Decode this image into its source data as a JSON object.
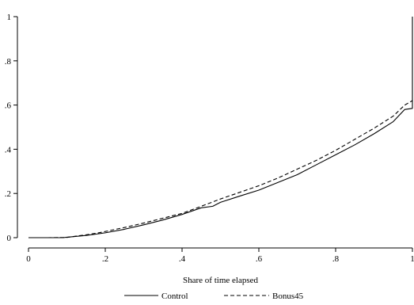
{
  "chart_data": {
    "type": "line",
    "title": "",
    "xlabel": "Share of time elapsed",
    "ylabel": "",
    "xlim": [
      0,
      1
    ],
    "ylim": [
      0,
      1
    ],
    "x_ticks": [
      0,
      0.2,
      0.4,
      0.6,
      0.8,
      1
    ],
    "x_tick_labels": [
      "0",
      ".2",
      ".4",
      ".6",
      ".8",
      "1"
    ],
    "y_ticks": [
      0,
      0.2,
      0.4,
      0.6,
      0.8,
      1
    ],
    "y_tick_labels": [
      "0",
      ".2",
      ".4",
      ".6",
      ".8",
      "1"
    ],
    "grid": false,
    "legend_position": "bottom",
    "series": [
      {
        "name": "Control",
        "style": "solid",
        "color": "#000000",
        "points": [
          [
            0.0,
            0.0
          ],
          [
            0.05,
            0.0
          ],
          [
            0.09,
            0.0
          ],
          [
            0.1,
            0.002
          ],
          [
            0.12,
            0.005
          ],
          [
            0.15,
            0.01
          ],
          [
            0.18,
            0.017
          ],
          [
            0.2,
            0.022
          ],
          [
            0.25,
            0.038
          ],
          [
            0.3,
            0.058
          ],
          [
            0.35,
            0.08
          ],
          [
            0.4,
            0.105
          ],
          [
            0.45,
            0.135
          ],
          [
            0.48,
            0.142
          ],
          [
            0.5,
            0.16
          ],
          [
            0.55,
            0.188
          ],
          [
            0.6,
            0.215
          ],
          [
            0.65,
            0.25
          ],
          [
            0.7,
            0.285
          ],
          [
            0.75,
            0.33
          ],
          [
            0.8,
            0.375
          ],
          [
            0.85,
            0.42
          ],
          [
            0.9,
            0.47
          ],
          [
            0.95,
            0.525
          ],
          [
            0.98,
            0.58
          ],
          [
            1.0,
            0.585
          ],
          [
            1.0,
            1.0
          ]
        ]
      },
      {
        "name": "Bonus45",
        "style": "dashed",
        "color": "#000000",
        "points": [
          [
            0.0,
            0.0
          ],
          [
            0.05,
            0.0
          ],
          [
            0.1,
            0.001
          ],
          [
            0.12,
            0.006
          ],
          [
            0.15,
            0.013
          ],
          [
            0.18,
            0.021
          ],
          [
            0.2,
            0.028
          ],
          [
            0.25,
            0.046
          ],
          [
            0.3,
            0.066
          ],
          [
            0.35,
            0.088
          ],
          [
            0.4,
            0.11
          ],
          [
            0.45,
            0.142
          ],
          [
            0.5,
            0.175
          ],
          [
            0.55,
            0.205
          ],
          [
            0.6,
            0.235
          ],
          [
            0.65,
            0.27
          ],
          [
            0.7,
            0.31
          ],
          [
            0.75,
            0.35
          ],
          [
            0.8,
            0.395
          ],
          [
            0.85,
            0.445
          ],
          [
            0.9,
            0.495
          ],
          [
            0.95,
            0.55
          ],
          [
            0.98,
            0.6
          ],
          [
            1.0,
            0.62
          ]
        ]
      }
    ]
  }
}
